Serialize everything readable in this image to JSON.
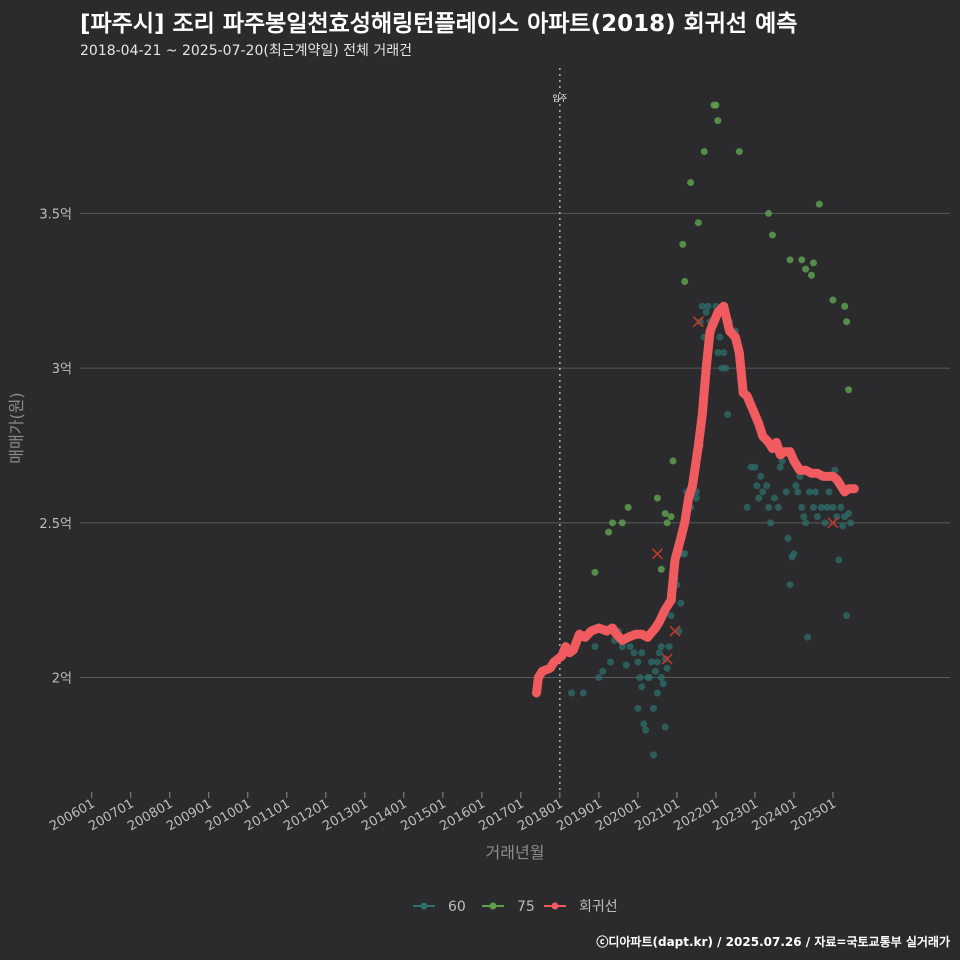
{
  "colors": {
    "background": "#2b2b2d",
    "grid": "#595959",
    "series_60": "#2e6f6a",
    "series_75": "#5e9e4f",
    "regression": "#ef5b5e",
    "marker_x": "#c0392b"
  },
  "chart_data": {
    "type": "scatter",
    "title": "[파주시] 조리 파주봉일천효성해링턴플레이스 아파트(2018) 회귀선 예측",
    "subtitle": "2018-04-21 ~ 2025-07-20(최근계약일) 전체 거래건",
    "xlabel": "거래년월",
    "ylabel": "매매가(원)",
    "caption": "ⓒ디아파트(dapt.kr) / 2025.07.26 / 자료=국토교통부 실거래가",
    "xlim": [
      2005.7,
      2028.0
    ],
    "ylim": [
      1.63,
      3.97
    ],
    "x_ticks": [
      {
        "value": 2006.0,
        "label": "200601"
      },
      {
        "value": 2007.0,
        "label": "200701"
      },
      {
        "value": 2008.0,
        "label": "200801"
      },
      {
        "value": 2009.0,
        "label": "200901"
      },
      {
        "value": 2010.0,
        "label": "201001"
      },
      {
        "value": 2011.0,
        "label": "201101"
      },
      {
        "value": 2012.0,
        "label": "201201"
      },
      {
        "value": 2013.0,
        "label": "201301"
      },
      {
        "value": 2014.0,
        "label": "201401"
      },
      {
        "value": 2015.0,
        "label": "201501"
      },
      {
        "value": 2016.0,
        "label": "201601"
      },
      {
        "value": 2017.0,
        "label": "201701"
      },
      {
        "value": 2018.0,
        "label": "201801"
      },
      {
        "value": 2019.0,
        "label": "201901"
      },
      {
        "value": 2020.0,
        "label": "202001"
      },
      {
        "value": 2021.0,
        "label": "202101"
      },
      {
        "value": 2022.0,
        "label": "202201"
      },
      {
        "value": 2023.0,
        "label": "202301"
      },
      {
        "value": 2024.0,
        "label": "202401"
      },
      {
        "value": 2025.0,
        "label": "202501"
      }
    ],
    "y_ticks": [
      {
        "value": 2.0,
        "label": "2억"
      },
      {
        "value": 2.5,
        "label": "2.5억"
      },
      {
        "value": 3.0,
        "label": "3억"
      },
      {
        "value": 3.5,
        "label": "3.5억"
      }
    ],
    "annotations": [
      {
        "x": 2018.0,
        "label": "입주"
      }
    ],
    "legend": {
      "position": "bottom",
      "items": [
        {
          "key": "series_60",
          "label": "60"
        },
        {
          "key": "series_75",
          "label": "75"
        },
        {
          "key": "regression",
          "label": "회귀선"
        }
      ]
    },
    "series": [
      {
        "name": "60",
        "type": "scatter",
        "points": [
          [
            2018.3,
            1.95
          ],
          [
            2018.6,
            1.95
          ],
          [
            2018.9,
            2.1
          ],
          [
            2019.0,
            2.0
          ],
          [
            2019.1,
            2.02
          ],
          [
            2019.3,
            2.05
          ],
          [
            2019.4,
            2.12
          ],
          [
            2019.5,
            2.15
          ],
          [
            2019.6,
            2.1
          ],
          [
            2019.7,
            2.04
          ],
          [
            2019.8,
            2.1
          ],
          [
            2019.9,
            2.08
          ],
          [
            2020.0,
            2.05
          ],
          [
            2020.0,
            1.9
          ],
          [
            2020.05,
            2.0
          ],
          [
            2020.1,
            1.97
          ],
          [
            2020.1,
            2.08
          ],
          [
            2020.15,
            1.85
          ],
          [
            2020.2,
            1.83
          ],
          [
            2020.25,
            2.0
          ],
          [
            2020.3,
            2.0
          ],
          [
            2020.35,
            2.05
          ],
          [
            2020.4,
            1.75
          ],
          [
            2020.4,
            1.9
          ],
          [
            2020.45,
            2.02
          ],
          [
            2020.5,
            2.05
          ],
          [
            2020.5,
            1.95
          ],
          [
            2020.55,
            2.08
          ],
          [
            2020.6,
            2.0
          ],
          [
            2020.6,
            2.1
          ],
          [
            2020.65,
            1.98
          ],
          [
            2020.7,
            2.06
          ],
          [
            2020.7,
            1.84
          ],
          [
            2020.75,
            2.03
          ],
          [
            2020.8,
            2.1
          ],
          [
            2020.85,
            2.2
          ],
          [
            2020.9,
            2.25
          ],
          [
            2020.95,
            2.32
          ],
          [
            2021.0,
            2.3
          ],
          [
            2021.05,
            2.15
          ],
          [
            2021.1,
            2.24
          ],
          [
            2021.15,
            2.4
          ],
          [
            2021.2,
            2.4
          ],
          [
            2021.25,
            2.6
          ],
          [
            2021.35,
            2.55
          ],
          [
            2021.5,
            2.6
          ],
          [
            2021.5,
            2.58
          ],
          [
            2021.6,
            2.75
          ],
          [
            2021.6,
            3.15
          ],
          [
            2021.65,
            3.2
          ],
          [
            2021.7,
            3.1
          ],
          [
            2021.75,
            3.18
          ],
          [
            2021.8,
            3.2
          ],
          [
            2021.85,
            3.15
          ],
          [
            2021.9,
            3.12
          ],
          [
            2022.0,
            3.2
          ],
          [
            2022.05,
            3.05
          ],
          [
            2022.1,
            3.1
          ],
          [
            2022.15,
            3.0
          ],
          [
            2022.2,
            3.05
          ],
          [
            2022.25,
            3.0
          ],
          [
            2022.3,
            2.85
          ],
          [
            2022.35,
            3.15
          ],
          [
            2022.4,
            3.12
          ],
          [
            2022.5,
            3.12
          ],
          [
            2022.8,
            2.55
          ],
          [
            2022.9,
            2.68
          ],
          [
            2023.0,
            2.68
          ],
          [
            2023.05,
            2.62
          ],
          [
            2023.1,
            2.58
          ],
          [
            2023.15,
            2.65
          ],
          [
            2023.2,
            2.6
          ],
          [
            2023.3,
            2.62
          ],
          [
            2023.35,
            2.55
          ],
          [
            2023.4,
            2.5
          ],
          [
            2023.5,
            2.58
          ],
          [
            2023.6,
            2.55
          ],
          [
            2023.65,
            2.68
          ],
          [
            2023.7,
            2.7
          ],
          [
            2023.8,
            2.6
          ],
          [
            2023.85,
            2.45
          ],
          [
            2023.9,
            2.3
          ],
          [
            2023.95,
            2.39
          ],
          [
            2024.0,
            2.4
          ],
          [
            2024.05,
            2.62
          ],
          [
            2024.1,
            2.6
          ],
          [
            2024.15,
            2.65
          ],
          [
            2024.2,
            2.55
          ],
          [
            2024.25,
            2.52
          ],
          [
            2024.3,
            2.5
          ],
          [
            2024.35,
            2.13
          ],
          [
            2024.4,
            2.6
          ],
          [
            2024.5,
            2.55
          ],
          [
            2024.55,
            2.6
          ],
          [
            2024.6,
            2.52
          ],
          [
            2024.7,
            2.55
          ],
          [
            2024.8,
            2.5
          ],
          [
            2024.85,
            2.55
          ],
          [
            2024.9,
            2.6
          ],
          [
            2025.0,
            2.55
          ],
          [
            2025.05,
            2.67
          ],
          [
            2025.1,
            2.52
          ],
          [
            2025.15,
            2.38
          ],
          [
            2025.2,
            2.55
          ],
          [
            2025.25,
            2.49
          ],
          [
            2025.3,
            2.52
          ],
          [
            2025.35,
            2.2
          ],
          [
            2025.4,
            2.53
          ],
          [
            2025.45,
            2.5
          ]
        ]
      },
      {
        "name": "75",
        "type": "scatter",
        "points": [
          [
            2018.9,
            2.34
          ],
          [
            2019.25,
            2.47
          ],
          [
            2019.35,
            2.5
          ],
          [
            2019.6,
            2.5
          ],
          [
            2019.75,
            2.55
          ],
          [
            2020.5,
            2.58
          ],
          [
            2020.6,
            2.35
          ],
          [
            2020.7,
            2.53
          ],
          [
            2020.75,
            2.5
          ],
          [
            2020.85,
            2.52
          ],
          [
            2020.9,
            2.7
          ],
          [
            2021.15,
            3.4
          ],
          [
            2021.2,
            3.28
          ],
          [
            2021.35,
            3.6
          ],
          [
            2021.55,
            3.47
          ],
          [
            2021.7,
            3.7
          ],
          [
            2021.95,
            3.85
          ],
          [
            2022.0,
            3.85
          ],
          [
            2022.05,
            3.8
          ],
          [
            2022.3,
            3.15
          ],
          [
            2022.6,
            3.7
          ],
          [
            2023.35,
            3.5
          ],
          [
            2023.45,
            3.43
          ],
          [
            2023.9,
            3.35
          ],
          [
            2024.2,
            3.35
          ],
          [
            2024.3,
            3.32
          ],
          [
            2024.45,
            3.3
          ],
          [
            2024.5,
            3.34
          ],
          [
            2024.65,
            3.53
          ],
          [
            2025.0,
            3.22
          ],
          [
            2025.3,
            3.2
          ],
          [
            2025.35,
            3.15
          ],
          [
            2025.4,
            2.93
          ]
        ]
      },
      {
        "name": "회귀선",
        "type": "line",
        "points": [
          [
            2017.4,
            1.95
          ],
          [
            2017.45,
            2.0
          ],
          [
            2017.55,
            2.02
          ],
          [
            2017.75,
            2.03
          ],
          [
            2017.85,
            2.05
          ],
          [
            2018.05,
            2.07
          ],
          [
            2018.15,
            2.1
          ],
          [
            2018.25,
            2.08
          ],
          [
            2018.35,
            2.09
          ],
          [
            2018.5,
            2.14
          ],
          [
            2018.65,
            2.13
          ],
          [
            2018.8,
            2.15
          ],
          [
            2019.0,
            2.16
          ],
          [
            2019.2,
            2.15
          ],
          [
            2019.35,
            2.16
          ],
          [
            2019.45,
            2.14
          ],
          [
            2019.6,
            2.12
          ],
          [
            2019.75,
            2.13
          ],
          [
            2019.95,
            2.14
          ],
          [
            2020.1,
            2.14
          ],
          [
            2020.25,
            2.13
          ],
          [
            2020.45,
            2.16
          ],
          [
            2020.55,
            2.18
          ],
          [
            2020.7,
            2.22
          ],
          [
            2020.85,
            2.25
          ],
          [
            2020.95,
            2.38
          ],
          [
            2021.1,
            2.45
          ],
          [
            2021.2,
            2.5
          ],
          [
            2021.3,
            2.58
          ],
          [
            2021.4,
            2.62
          ],
          [
            2021.55,
            2.75
          ],
          [
            2021.65,
            2.85
          ],
          [
            2021.75,
            3.0
          ],
          [
            2021.85,
            3.12
          ],
          [
            2021.95,
            3.15
          ],
          [
            2022.05,
            3.18
          ],
          [
            2022.2,
            3.2
          ],
          [
            2022.35,
            3.12
          ],
          [
            2022.5,
            3.1
          ],
          [
            2022.6,
            3.05
          ],
          [
            2022.7,
            2.92
          ],
          [
            2022.8,
            2.91
          ],
          [
            2022.9,
            2.88
          ],
          [
            2023.0,
            2.85
          ],
          [
            2023.1,
            2.82
          ],
          [
            2023.2,
            2.78
          ],
          [
            2023.35,
            2.76
          ],
          [
            2023.45,
            2.74
          ],
          [
            2023.55,
            2.76
          ],
          [
            2023.65,
            2.72
          ],
          [
            2023.75,
            2.73
          ],
          [
            2023.9,
            2.73
          ],
          [
            2024.0,
            2.7
          ],
          [
            2024.15,
            2.67
          ],
          [
            2024.3,
            2.67
          ],
          [
            2024.45,
            2.66
          ],
          [
            2024.6,
            2.66
          ],
          [
            2024.75,
            2.65
          ],
          [
            2024.9,
            2.65
          ],
          [
            2025.0,
            2.65
          ],
          [
            2025.1,
            2.64
          ],
          [
            2025.2,
            2.62
          ],
          [
            2025.3,
            2.6
          ],
          [
            2025.4,
            2.61
          ],
          [
            2025.55,
            2.61
          ]
        ]
      },
      {
        "name": "x-markers",
        "type": "marker",
        "points": [
          [
            2020.5,
            2.4
          ],
          [
            2020.75,
            2.06
          ],
          [
            2020.95,
            2.15
          ],
          [
            2021.55,
            3.15
          ],
          [
            2025.0,
            2.5
          ]
        ]
      }
    ]
  }
}
